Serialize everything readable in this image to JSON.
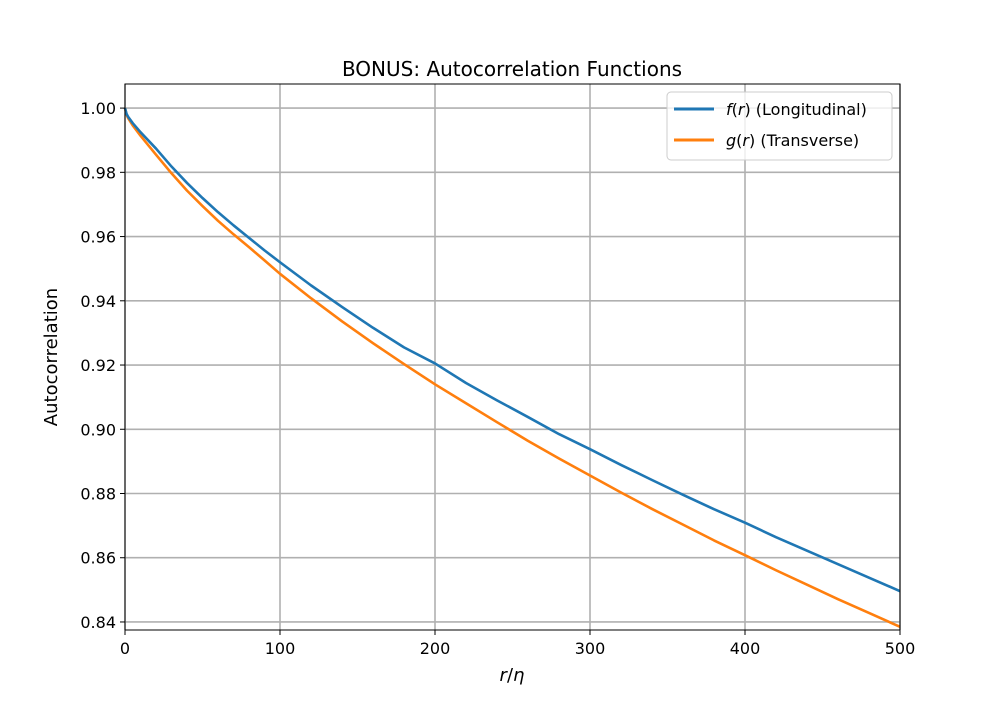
{
  "chart_data": {
    "type": "line",
    "title": "BONUS: Autocorrelation Functions",
    "xlabel": "r/η",
    "xlabel_parts": [
      "r",
      "/",
      "η"
    ],
    "ylabel": "Autocorrelation",
    "xlim": [
      0,
      500
    ],
    "ylim": [
      0.8375,
      1.0075
    ],
    "xticks": [
      0,
      100,
      200,
      300,
      400,
      500
    ],
    "xtick_labels": [
      "0",
      "100",
      "200",
      "300",
      "400",
      "500"
    ],
    "yticks": [
      0.84,
      0.86,
      0.88,
      0.9,
      0.92,
      0.94,
      0.96,
      0.98,
      1.0
    ],
    "ytick_labels": [
      "0.84",
      "0.86",
      "0.88",
      "0.90",
      "0.92",
      "0.94",
      "0.96",
      "0.98",
      "1.00"
    ],
    "grid": true,
    "legend_position": "top-right",
    "series": [
      {
        "name": "f(r) (Longitudinal)",
        "legend_fn": "f",
        "legend_arg": "r",
        "legend_rest": " (Longitudinal)",
        "color": "#1f77b4",
        "x": [
          0,
          1,
          2,
          5,
          10,
          20,
          30,
          40,
          50,
          60,
          70,
          80,
          90,
          100,
          120,
          140,
          160,
          180,
          200,
          220,
          240,
          260,
          280,
          300,
          320,
          340,
          360,
          380,
          400,
          420,
          440,
          460,
          480,
          500
        ],
        "values": [
          1.0,
          0.9982,
          0.9973,
          0.9953,
          0.9925,
          0.9874,
          0.9818,
          0.9767,
          0.972,
          0.9676,
          0.9635,
          0.9596,
          0.9557,
          0.952,
          0.9448,
          0.9381,
          0.9316,
          0.9255,
          0.9205,
          0.9144,
          0.909,
          0.9038,
          0.8985,
          0.8938,
          0.8889,
          0.8842,
          0.8796,
          0.8751,
          0.8709,
          0.8664,
          0.8622,
          0.858,
          0.8538,
          0.8496
        ]
      },
      {
        "name": "g(r) (Transverse)",
        "legend_fn": "g",
        "legend_arg": "r",
        "legend_rest": " (Transverse)",
        "color": "#ff7f0e",
        "x": [
          0,
          1,
          2,
          5,
          10,
          20,
          30,
          40,
          50,
          60,
          70,
          80,
          90,
          100,
          120,
          140,
          160,
          180,
          200,
          220,
          240,
          260,
          280,
          300,
          320,
          340,
          360,
          380,
          400,
          420,
          440,
          460,
          480,
          500
        ],
        "values": [
          1.0,
          0.9979,
          0.9969,
          0.9946,
          0.9914,
          0.9855,
          0.9797,
          0.9743,
          0.9695,
          0.9649,
          0.9607,
          0.9567,
          0.9526,
          0.9484,
          0.9408,
          0.9336,
          0.9268,
          0.9203,
          0.914,
          0.9081,
          0.9022,
          0.8964,
          0.8909,
          0.8856,
          0.8803,
          0.8752,
          0.8703,
          0.8654,
          0.8608,
          0.8561,
          0.8516,
          0.8471,
          0.8428,
          0.8385
        ]
      }
    ]
  }
}
